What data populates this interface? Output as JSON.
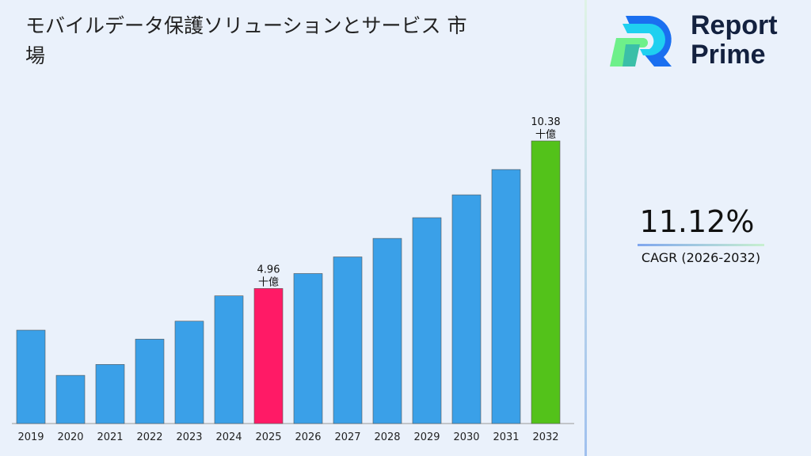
{
  "title": "モバイルデータ保護ソリューションとサービス 市場",
  "brand": {
    "line1": "Report",
    "line2": "Prime"
  },
  "cagr": {
    "value": "11.12%",
    "label": "CAGR (2026-2032)"
  },
  "chart_data": {
    "type": "bar",
    "categories": [
      "2019",
      "2020",
      "2021",
      "2022",
      "2023",
      "2024",
      "2025",
      "2026",
      "2027",
      "2028",
      "2029",
      "2030",
      "2031",
      "2032"
    ],
    "values": [
      3.43,
      1.77,
      2.17,
      3.1,
      3.76,
      4.69,
      4.96,
      5.51,
      6.12,
      6.8,
      7.56,
      8.4,
      9.33,
      10.38
    ],
    "colors": [
      "#3aa0e8",
      "#3aa0e8",
      "#3aa0e8",
      "#3aa0e8",
      "#3aa0e8",
      "#3aa0e8",
      "#ff1a66",
      "#3aa0e8",
      "#3aa0e8",
      "#3aa0e8",
      "#3aa0e8",
      "#3aa0e8",
      "#3aa0e8",
      "#53c21a"
    ],
    "data_labels": [
      {
        "index": 6,
        "text": "4.96",
        "unit": "十億"
      },
      {
        "index": 13,
        "text": "10.38",
        "unit": "十億"
      }
    ],
    "title": "",
    "xlabel": "",
    "ylabel": "",
    "grid": false
  }
}
